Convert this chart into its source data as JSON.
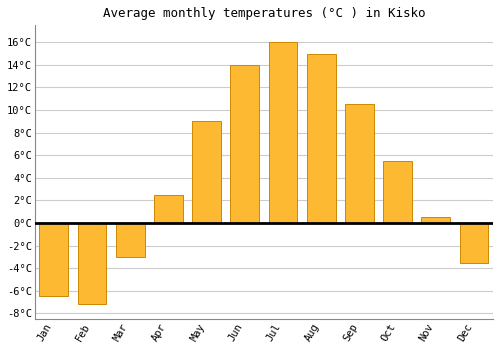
{
  "title": "Average monthly temperatures (°C ) in Kisko",
  "months": [
    "Jan",
    "Feb",
    "Mar",
    "Apr",
    "May",
    "Jun",
    "Jul",
    "Aug",
    "Sep",
    "Oct",
    "Nov",
    "Dec"
  ],
  "values": [
    -6.5,
    -7.2,
    -3.0,
    2.5,
    9.0,
    14.0,
    16.0,
    15.0,
    10.5,
    5.5,
    0.5,
    -3.5
  ],
  "bar_color": "#FDB931",
  "bar_edge_color": "#CC8800",
  "background_color": "#FFFFFF",
  "grid_color": "#CCCCCC",
  "ylim": [
    -8.5,
    17.5
  ],
  "yticks": [
    -8,
    -6,
    -4,
    -2,
    0,
    2,
    4,
    6,
    8,
    10,
    12,
    14,
    16
  ],
  "title_fontsize": 9,
  "tick_fontsize": 7.5,
  "font_family": "monospace"
}
